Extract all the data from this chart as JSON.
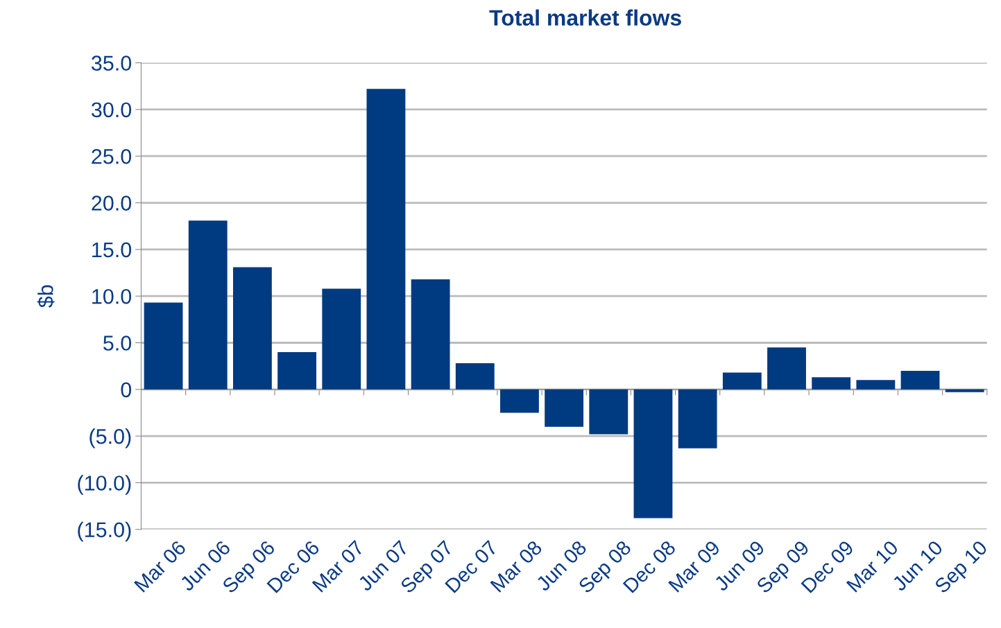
{
  "chart_data": {
    "type": "bar",
    "title": "Total market flows",
    "ylabel": "$b",
    "categories": [
      "Mar 06",
      "Jun 06",
      "Sep 06",
      "Dec 06",
      "Mar 07",
      "Jun 07",
      "Sep 07",
      "Dec 07",
      "Mar 08",
      "Jun 08",
      "Sep 08",
      "Dec 08",
      "Mar 09",
      "Jun 09",
      "Sep 09",
      "Dec 09",
      "Mar 10",
      "Jun 10",
      "Sep 10"
    ],
    "values": [
      9.3,
      18.1,
      13.1,
      4.0,
      10.8,
      32.2,
      11.8,
      2.8,
      -2.5,
      -4.0,
      -4.8,
      -13.8,
      -6.3,
      1.8,
      4.5,
      1.3,
      1.0,
      2.0,
      -0.3
    ],
    "color": "#003a80",
    "ylim": [
      -15,
      35
    ],
    "yticks": [
      {
        "value": -15,
        "label": "(15.0)"
      },
      {
        "value": -10,
        "label": "(10.0)"
      },
      {
        "value": -5,
        "label": "(5.0)"
      },
      0,
      {
        "value": 5,
        "label": "5.0"
      },
      {
        "value": 10,
        "label": "10.0"
      },
      {
        "value": 15,
        "label": "15.0"
      },
      {
        "value": 20,
        "label": "20.0"
      },
      {
        "value": 25,
        "label": "25.0"
      },
      {
        "value": 30,
        "label": "30.0"
      },
      {
        "value": 35,
        "label": "35.0"
      }
    ],
    "grid": "y",
    "legend": false
  }
}
